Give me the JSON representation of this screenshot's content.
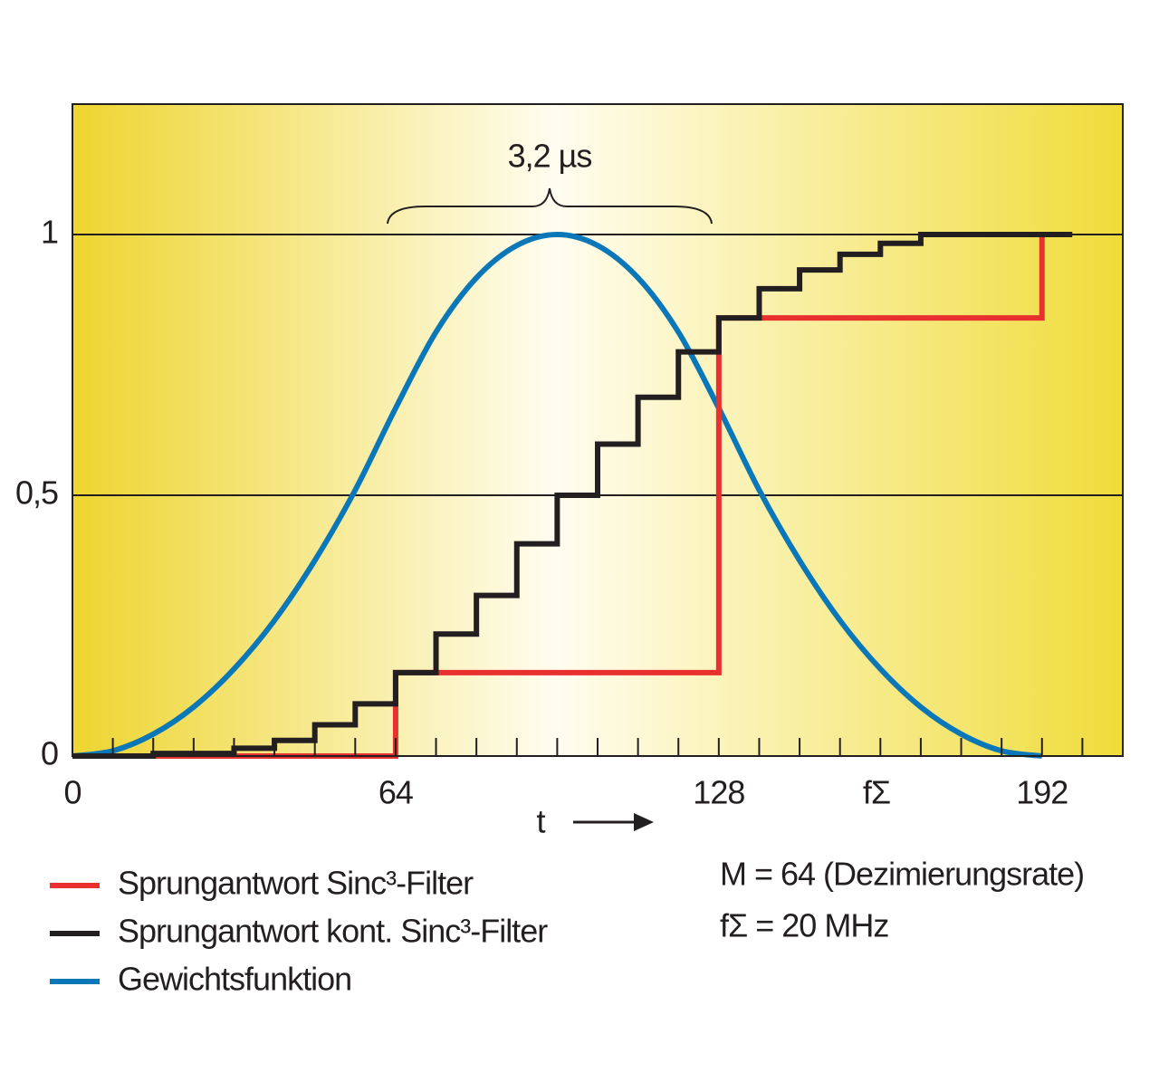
{
  "chart_data": {
    "type": "line",
    "annotation": "3,2 µs",
    "xlabel": "t",
    "x_unit_label": "fΣ",
    "notes": [
      "M = 64 (Dezimierungsrate)",
      "fΣ  = 20 MHz"
    ],
    "xlim": [
      0,
      208
    ],
    "ylim": [
      0,
      1.25
    ],
    "xticks": [
      0,
      64,
      128,
      192
    ],
    "minor_xticks": [
      8,
      16,
      24,
      32,
      40,
      48,
      56,
      64,
      72,
      80,
      88,
      96,
      104,
      112,
      120,
      128,
      136,
      144,
      152,
      160,
      168,
      176,
      184,
      192,
      200
    ],
    "yticks": [
      0,
      {
        "value": 0.5,
        "label": "0,5"
      },
      1
    ],
    "grid": true,
    "series": [
      {
        "name": "Sprungantwort Sinc³-Filter",
        "color": "#e8312f",
        "step": "post",
        "x": [
          0,
          64,
          128,
          192
        ],
        "values": [
          0,
          0.16,
          0.84,
          1
        ]
      },
      {
        "name": "Sprungantwort kont. Sinc³-Filter",
        "color": "#231f20",
        "step": "post",
        "x": [
          0,
          16,
          32,
          40,
          48,
          56,
          64,
          72,
          80,
          88,
          96,
          104,
          112,
          120,
          128,
          136,
          144,
          152,
          160,
          168,
          198
        ],
        "values": [
          0,
          0.005,
          0.015,
          0.03,
          0.06,
          0.1,
          0.16,
          0.234,
          0.308,
          0.407,
          0.5,
          0.598,
          0.688,
          0.775,
          0.84,
          0.896,
          0.932,
          0.962,
          0.983,
          1,
          1
        ]
      },
      {
        "name": "Gewichtsfunktion",
        "color": "#0a78b8",
        "step": "none",
        "x": [
          0,
          8,
          16,
          24,
          32,
          40,
          48,
          56,
          64,
          72,
          80,
          88,
          96,
          104,
          112,
          120,
          128,
          136,
          144,
          152,
          160,
          168,
          176,
          184,
          192
        ],
        "values": [
          0,
          0.01,
          0.042,
          0.094,
          0.167,
          0.26,
          0.375,
          0.51,
          0.667,
          0.813,
          0.917,
          0.979,
          1,
          0.979,
          0.917,
          0.813,
          0.667,
          0.51,
          0.375,
          0.26,
          0.167,
          0.094,
          0.042,
          0.01,
          0
        ]
      }
    ]
  }
}
